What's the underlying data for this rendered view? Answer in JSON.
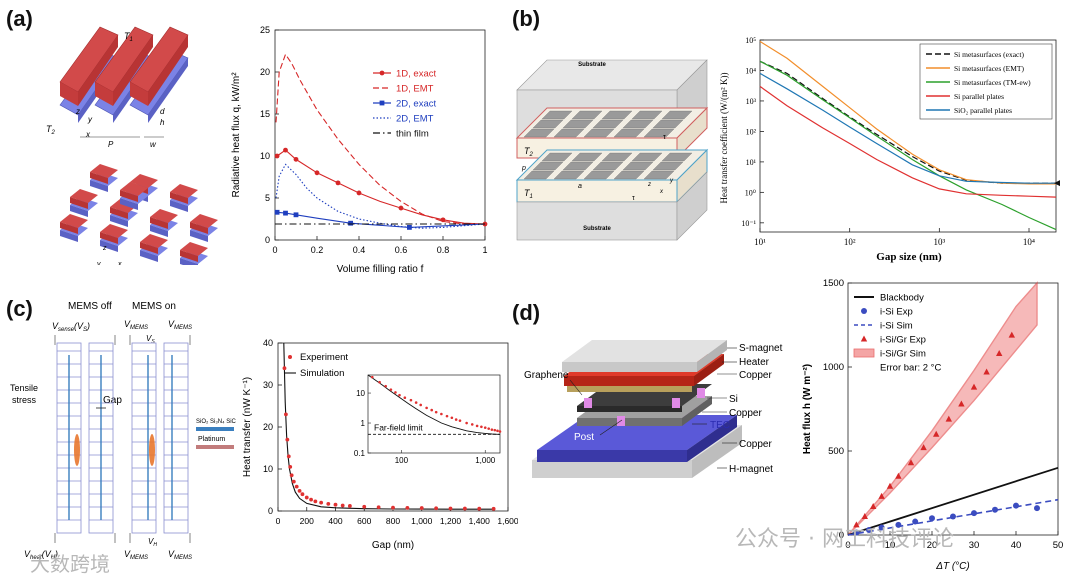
{
  "panel_labels": [
    "(a)",
    "(b)",
    "(c)",
    "(d)"
  ],
  "watermark": {
    "left": "大数跨境",
    "right": "公众号 · 网工科技评论"
  },
  "schem_a": {
    "t1": "T",
    "t1_sub": "1",
    "t2": "T",
    "t2_sub": "2",
    "z": "z",
    "y": "y",
    "x": "x",
    "P": "P",
    "w": "w",
    "d": "d",
    "h": "h"
  },
  "schem_b": {
    "substrate_top": "Substrate",
    "substrate_bottom": "Substrate",
    "t2": "T",
    "t2_sub": "2",
    "t1": "T",
    "t1_sub": "1",
    "tau": "τ",
    "tau2": "τ",
    "d": "d",
    "p": "p",
    "a": "a",
    "x": "x",
    "y": "y",
    "z": "z"
  },
  "schem_c": {
    "mems_off": "MEMS off",
    "mems_on": "MEMS on",
    "vsense": "V",
    "vsense_sub": "sense",
    "vsense_paren": "(V",
    "vsense_paren_sub": "S",
    "vsense_close": ")",
    "vmems": "V",
    "vmems_sub": "MEMS",
    "vs": "V",
    "vs_sub": "S",
    "tensile": "Tensile",
    "stress": "stress",
    "gap": "Gap",
    "vheat": "V",
    "vheat_sub": "heat",
    "vh": "(V",
    "vh_sub": "H",
    "vh_close": ")",
    "vh2": "V",
    "vh2_sub": "H",
    "materials": "SiO₂ Si₃N₄ SiC",
    "platinum": "Platinum"
  },
  "schem_d": {
    "s_magnet": "S-magnet",
    "heater": "Heater",
    "copper1": "Copper",
    "si": "Si",
    "copper2": "Copper",
    "tec": "TEC",
    "copper3": "Copper",
    "h_magnet": "H-magnet",
    "graphene": "Graphene",
    "post": "Post"
  },
  "chart_data": [
    {
      "panel": "(a)",
      "type": "line",
      "xlabel": "Volume filling ratio f",
      "ylabel": "Radiative heat flux q, kW/m²",
      "xlim": [
        0,
        1
      ],
      "ylim": [
        0,
        25
      ],
      "xticks": [
        0,
        0.2,
        0.4,
        0.6,
        0.8,
        1
      ],
      "xtick_labels": [
        "0",
        "0.2",
        "0.4",
        "0.6",
        "0.8",
        "1"
      ],
      "yticks": [
        0,
        5,
        10,
        15,
        20,
        25
      ],
      "ytick_labels": [
        "0",
        "5",
        "10",
        "15",
        "20",
        "25"
      ],
      "series": [
        {
          "name": "1D, exact",
          "color": "#d62728",
          "style": "solid",
          "marker": "circle",
          "x": [
            0.01,
            0.05,
            0.1,
            0.2,
            0.3,
            0.4,
            0.5,
            0.6,
            0.7,
            0.8,
            0.9,
            1.0
          ],
          "y": [
            10.0,
            10.7,
            9.6,
            8.0,
            6.8,
            5.6,
            4.6,
            3.8,
            3.0,
            2.4,
            2.0,
            1.9
          ],
          "marker_x": [
            0.01,
            0.05,
            0.1,
            0.2,
            0.3,
            0.4,
            0.6,
            0.8,
            1.0
          ],
          "marker_y": [
            10.0,
            10.7,
            9.6,
            8.0,
            6.8,
            5.6,
            3.8,
            2.4,
            1.9
          ]
        },
        {
          "name": "1D, EMT",
          "color": "#d62728",
          "style": "dashed",
          "marker": "none",
          "x": [
            0.005,
            0.02,
            0.05,
            0.08,
            0.12,
            0.2,
            0.3,
            0.4,
            0.5,
            0.6,
            0.7,
            0.8,
            0.9,
            1.0
          ],
          "y": [
            14.0,
            20.0,
            22.1,
            21.0,
            19.0,
            15.5,
            12.0,
            9.0,
            6.5,
            4.6,
            3.1,
            2.2,
            1.9,
            1.9
          ]
        },
        {
          "name": "2D, exact",
          "color": "#1f3fbf",
          "style": "solid",
          "marker": "square",
          "x": [
            0.01,
            0.05,
            0.1,
            0.2,
            0.36,
            0.64,
            0.9,
            1.0
          ],
          "y": [
            3.3,
            3.2,
            3.0,
            2.6,
            2.0,
            1.5,
            1.8,
            1.9
          ],
          "marker_x": [
            0.01,
            0.05,
            0.1,
            0.36,
            0.64
          ],
          "marker_y": [
            3.3,
            3.2,
            3.0,
            2.0,
            1.5
          ]
        },
        {
          "name": "2D, EMT",
          "color": "#1f3fbf",
          "style": "dotted",
          "marker": "none",
          "x": [
            0.005,
            0.02,
            0.05,
            0.1,
            0.15,
            0.2,
            0.3,
            0.4,
            0.5,
            0.6,
            0.7,
            0.8,
            0.9,
            1.0
          ],
          "y": [
            5.0,
            7.6,
            9.0,
            7.8,
            6.2,
            5.0,
            3.4,
            2.5,
            2.0,
            1.6,
            1.4,
            1.5,
            1.7,
            1.9
          ]
        },
        {
          "name": "thin film",
          "color": "#111111",
          "style": "dashdot",
          "marker": "none",
          "x": [
            0,
            1
          ],
          "y": [
            1.9,
            1.9
          ]
        }
      ]
    },
    {
      "panel": "(b)",
      "type": "line",
      "xscale": "log",
      "yscale": "log",
      "xlabel": "Gap size (nm)",
      "ylabel": "Heat transfer coefficient (W/(m² K))",
      "xlim": [
        10,
        20000
      ],
      "ylim": [
        0.05,
        100000
      ],
      "xtick_labels": [
        "10¹",
        "10²",
        "10³",
        "10⁴"
      ],
      "ytick_labels": [
        "10⁻¹",
        "10⁰",
        "10¹",
        "10²",
        "10³",
        "10⁴",
        "10⁵"
      ],
      "series": [
        {
          "name": "Si metasurfaces (exact)",
          "color": "#111111",
          "style": "dashed",
          "x": [
            10,
            20,
            50,
            100,
            200,
            500,
            1000,
            2000,
            5000,
            10000,
            20000
          ],
          "y": [
            20000,
            8000,
            1200,
            300,
            80,
            15,
            5,
            2.5,
            2.0,
            2.0,
            2.0
          ]
        },
        {
          "name": "Si metasurfaces (EMT)",
          "color": "#f28e2b",
          "style": "solid",
          "x": [
            10,
            20,
            50,
            100,
            200,
            500,
            1000,
            2000,
            5000,
            10000,
            20000
          ],
          "y": [
            90000,
            25000,
            3000,
            600,
            120,
            18,
            5.5,
            2.6,
            2.0,
            1.9,
            1.9
          ]
        },
        {
          "name": "Si metasurfaces (TM-ew)",
          "color": "#2ca02c",
          "style": "solid",
          "x": [
            10,
            20,
            50,
            100,
            200,
            500,
            1000,
            2000,
            5000,
            10000,
            20000
          ],
          "y": [
            20000,
            7000,
            1100,
            280,
            70,
            12,
            3.5,
            1.2,
            0.4,
            0.15,
            0.06
          ]
        },
        {
          "name": "Si parallel plates",
          "color": "#e03131",
          "style": "solid",
          "x": [
            10,
            20,
            50,
            100,
            200,
            500,
            1000,
            2000,
            5000,
            10000,
            20000
          ],
          "y": [
            3000,
            700,
            130,
            40,
            12,
            3,
            1.3,
            0.9,
            0.8,
            0.75,
            0.7
          ]
        },
        {
          "name": "SiO₂ parallel plates",
          "color": "#1f77b4",
          "style": "solid",
          "x": [
            10,
            20,
            50,
            100,
            200,
            500,
            1000,
            2000,
            5000,
            10000,
            20000
          ],
          "y": [
            8000,
            2500,
            500,
            140,
            40,
            8,
            3.5,
            2.3,
            2.1,
            2.0,
            2.0
          ]
        }
      ]
    },
    {
      "panel": "(c)",
      "type": "scatter",
      "xlabel": "Gap (nm)",
      "ylabel": "Heat transfer (nW K⁻¹)",
      "xlim": [
        0,
        1600
      ],
      "ylim": [
        0,
        40
      ],
      "xticks": [
        0,
        200,
        400,
        600,
        800,
        1000,
        1200,
        1400,
        1600
      ],
      "xtick_labels": [
        "0",
        "200",
        "400",
        "600",
        "800",
        "1,000",
        "1,200",
        "1,400",
        "1,600"
      ],
      "yticks": [
        0,
        10,
        20,
        30,
        40
      ],
      "ytick_labels": [
        "0",
        "10",
        "20",
        "30",
        "40"
      ],
      "series": [
        {
          "name": "Experiment",
          "color": "#e03131",
          "marker": "dot",
          "x": [
            45,
            55,
            65,
            75,
            85,
            95,
            110,
            130,
            150,
            170,
            200,
            230,
            260,
            300,
            350,
            400,
            450,
            500,
            600,
            700,
            800,
            900,
            1000,
            1100,
            1200,
            1300,
            1400,
            1500
          ],
          "y": [
            34,
            23,
            17,
            13,
            10.5,
            8.5,
            7,
            5.8,
            4.8,
            4.0,
            3.2,
            2.7,
            2.3,
            2.0,
            1.7,
            1.5,
            1.3,
            1.2,
            1.0,
            0.9,
            0.8,
            0.75,
            0.7,
            0.65,
            0.6,
            0.58,
            0.55,
            0.52
          ]
        },
        {
          "name": "Simulation",
          "color": "#111111",
          "style": "solid",
          "x": [
            40,
            50,
            60,
            70,
            80,
            100,
            120,
            150,
            200,
            300,
            400,
            600,
            800,
            1000,
            1200,
            1400,
            1500
          ],
          "y": [
            40,
            26,
            18,
            13,
            10,
            6.5,
            4.5,
            3.0,
            1.8,
            1.0,
            0.75,
            0.55,
            0.48,
            0.45,
            0.43,
            0.42,
            0.42
          ]
        }
      ],
      "inset": {
        "xscale": "log",
        "yscale": "log",
        "xlim": [
          40,
          1500
        ],
        "ylim": [
          0.1,
          40
        ],
        "xtick_labels": [
          "100",
          "1,000"
        ],
        "ytick_labels": [
          "0.1",
          "1",
          "10"
        ],
        "annotation": "Far-field limit",
        "far_field": 0.42
      }
    },
    {
      "panel": "(d)",
      "type": "line",
      "xlabel": "ΔT (°C)",
      "ylabel": "Heat flux h (W m⁻²)",
      "xlim": [
        0,
        50
      ],
      "ylim": [
        0,
        1500
      ],
      "xticks": [
        0,
        10,
        20,
        30,
        40,
        50
      ],
      "xtick_labels": [
        "0",
        "10",
        "20",
        "30",
        "40",
        "50"
      ],
      "yticks": [
        0,
        500,
        1000,
        1500
      ],
      "ytick_labels": [
        "0",
        "500",
        "1000",
        "1500"
      ],
      "error_bar_note": "Error bar: 2 °C",
      "series": [
        {
          "name": "Blackbody",
          "color": "#111111",
          "style": "solid",
          "x": [
            0,
            50
          ],
          "y": [
            0,
            400
          ]
        },
        {
          "name": "i-Si Exp",
          "color": "#3b4cc0",
          "marker": "circle",
          "x": [
            2,
            5,
            8,
            12,
            16,
            20,
            25,
            30,
            35,
            40,
            45
          ],
          "y": [
            15,
            30,
            45,
            60,
            80,
            100,
            110,
            130,
            150,
            175,
            160
          ]
        },
        {
          "name": "i-Si Sim",
          "color": "#3b4cc0",
          "style": "dashed",
          "x": [
            0,
            50
          ],
          "y": [
            0,
            210
          ]
        },
        {
          "name": "i-Si/Gr Exp",
          "color": "#d62728",
          "marker": "triangle",
          "x": [
            2,
            4,
            6,
            8,
            10,
            12,
            15,
            18,
            21,
            24,
            27,
            30,
            33,
            36,
            39
          ],
          "y": [
            60,
            110,
            170,
            230,
            290,
            350,
            430,
            520,
            600,
            690,
            780,
            880,
            970,
            1080,
            1190
          ]
        },
        {
          "name": "i-Si/Gr Sim",
          "color": "#f08080",
          "style": "band",
          "x": [
            0,
            10,
            20,
            30,
            40,
            45
          ],
          "y_low": [
            0,
            250,
            520,
            800,
            1100,
            1250
          ],
          "y_high": [
            0,
            290,
            620,
            980,
            1360,
            1500
          ]
        }
      ]
    }
  ]
}
